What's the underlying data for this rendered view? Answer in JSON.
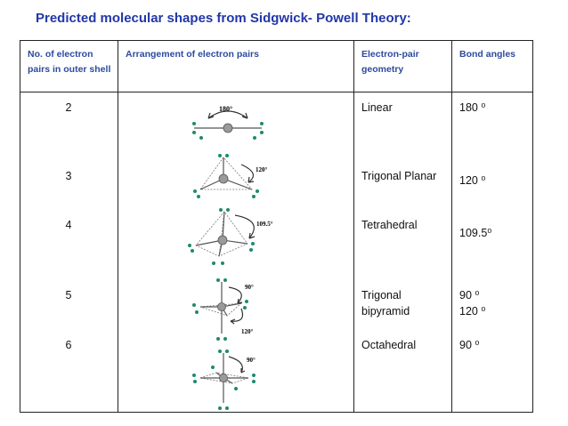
{
  "title": "Predicted molecular shapes from Sidgwick- Powell Theory:",
  "headers": {
    "pairs": "No. of electron pairs in outer shell",
    "arrangement": "Arrangement of electron pairs",
    "geometry": "Electron-pair geometry",
    "angles": "Bond angles"
  },
  "rows": [
    {
      "pairs": "2",
      "geometry": "Linear",
      "angles": [
        "180 ⁰"
      ],
      "diagram_labels": [
        "180°"
      ]
    },
    {
      "pairs": "3",
      "geometry": "Trigonal Planar",
      "angles": [
        "120 ⁰"
      ],
      "diagram_labels": [
        "120°"
      ]
    },
    {
      "pairs": "4",
      "geometry": "Tetrahedral",
      "angles": [
        "109.5⁰"
      ],
      "diagram_labels": [
        "109.5°"
      ]
    },
    {
      "pairs": "5",
      "geometry_lines": [
        "Trigonal",
        "bipyramid"
      ],
      "angles": [
        "90 ⁰",
        "120 ⁰"
      ],
      "diagram_labels": [
        "90°",
        "120°"
      ]
    },
    {
      "pairs": "6",
      "geometry": "Octahedral",
      "angles": [
        "90 ⁰"
      ],
      "diagram_labels": [
        "90°"
      ]
    }
  ],
  "colors": {
    "title": "#2237a8",
    "header": "#2d4a9e",
    "dot": "#1e8a6e",
    "atom": "#9a9a9a",
    "border": "#222222"
  }
}
